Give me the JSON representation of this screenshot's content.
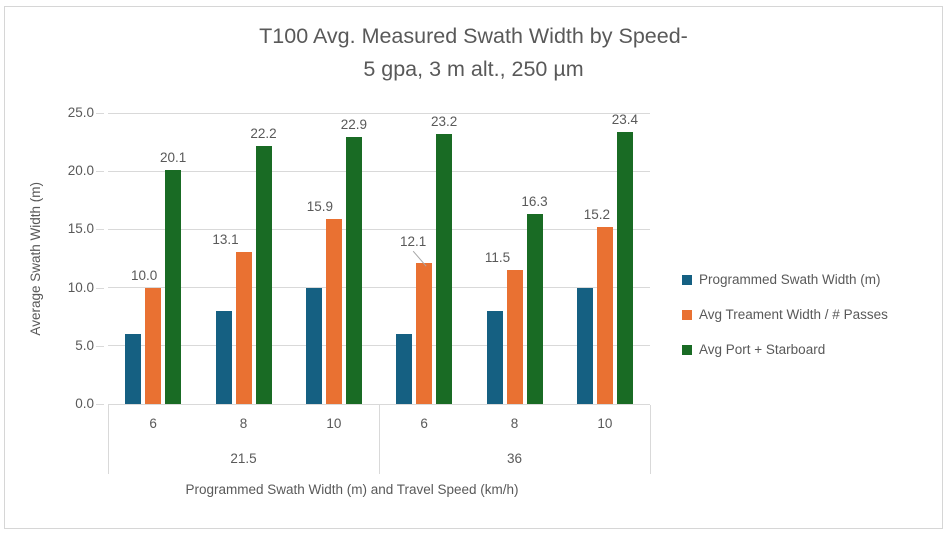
{
  "chart_data": {
    "type": "bar",
    "title_line1": "T100 Avg. Measured Swath Width by Speed-",
    "title_line2": "5 gpa, 3 m alt., 250 µm",
    "ylabel": "Average Swath Width (m)",
    "xlabel": "Programmed Swath Width (m) and Travel Speed (km/h)",
    "ylim": [
      0,
      25
    ],
    "yticks": [
      0,
      5,
      10,
      15,
      20,
      25
    ],
    "ytick_labels": [
      "0.0",
      "5.0",
      "10.0",
      "15.0",
      "20.0",
      "25.0"
    ],
    "grid": "horizontal",
    "legend_position": "right",
    "groups": [
      {
        "label": "21.5",
        "categories": [
          "6",
          "8",
          "10"
        ]
      },
      {
        "label": "36",
        "categories": [
          "6",
          "8",
          "10"
        ]
      }
    ],
    "series": [
      {
        "name": "Programmed Swath Width (m)",
        "color": "#156082",
        "values": [
          6,
          8,
          10,
          6,
          8,
          10
        ],
        "labels": [
          "",
          "",
          "",
          "",
          "",
          ""
        ]
      },
      {
        "name": "Avg Treament Width / # Passes",
        "color": "#E97132",
        "values": [
          10.0,
          13.1,
          15.9,
          12.1,
          11.5,
          15.2
        ],
        "labels": [
          "10.0",
          "13.1",
          "15.9",
          "12.1",
          "11.5",
          "15.2"
        ]
      },
      {
        "name": "Avg Port + Starboard",
        "color": "#196B24",
        "values": [
          20.1,
          22.2,
          22.9,
          23.2,
          16.3,
          23.4
        ],
        "labels": [
          "20.1",
          "22.2",
          "22.9",
          "23.2",
          "16.3",
          "23.4"
        ]
      }
    ],
    "annotations": [
      {
        "type": "leader-line",
        "series_index": 1,
        "point_index": 3,
        "label": "12.1"
      }
    ]
  },
  "colors": {
    "text": "#595959",
    "gridline": "#D9D9D9",
    "frame_border": "#D6D6D6",
    "leader_line": "#A6A6A6",
    "background": "#FFFFFF"
  }
}
